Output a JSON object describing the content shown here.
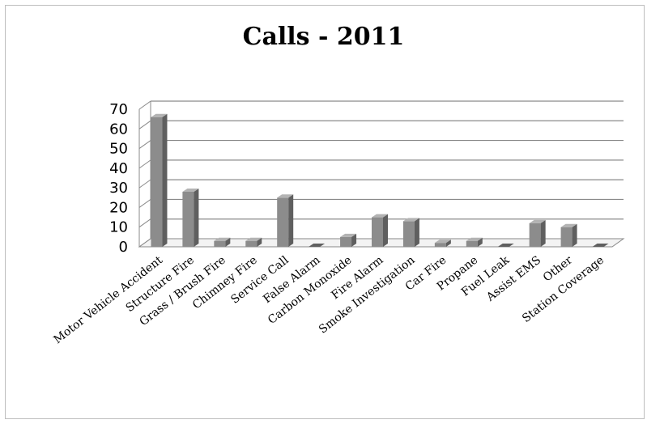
{
  "chart_data": {
    "type": "bar",
    "title": "Calls - 2011",
    "xlabel": "",
    "ylabel": "",
    "ylim": [
      0,
      70
    ],
    "yticks": [
      0,
      10,
      20,
      30,
      40,
      50,
      60,
      70
    ],
    "grid": true,
    "style": "3d-column",
    "colors": {
      "bar_front": "#8c8c8c",
      "bar_side": "#5f5f5f",
      "bar_top": "#b3b3b3",
      "grid": "#8a8a8a"
    },
    "categories": [
      "Motor Vehicle Accident",
      "Structure Fire",
      "Grass / Brush Fire",
      "Chimney Fire",
      "Service Call",
      "False Alarm",
      "Carbon Monoxide",
      "Fire Alarm",
      "Smoke Investigation",
      "Car Fire",
      "Propane",
      "Fuel Leak",
      "Assist EMS",
      "Other",
      "Station Coverage"
    ],
    "values": [
      66,
      28,
      3,
      3,
      25,
      0,
      5,
      15,
      13,
      2,
      3,
      0,
      12,
      10,
      0
    ]
  }
}
